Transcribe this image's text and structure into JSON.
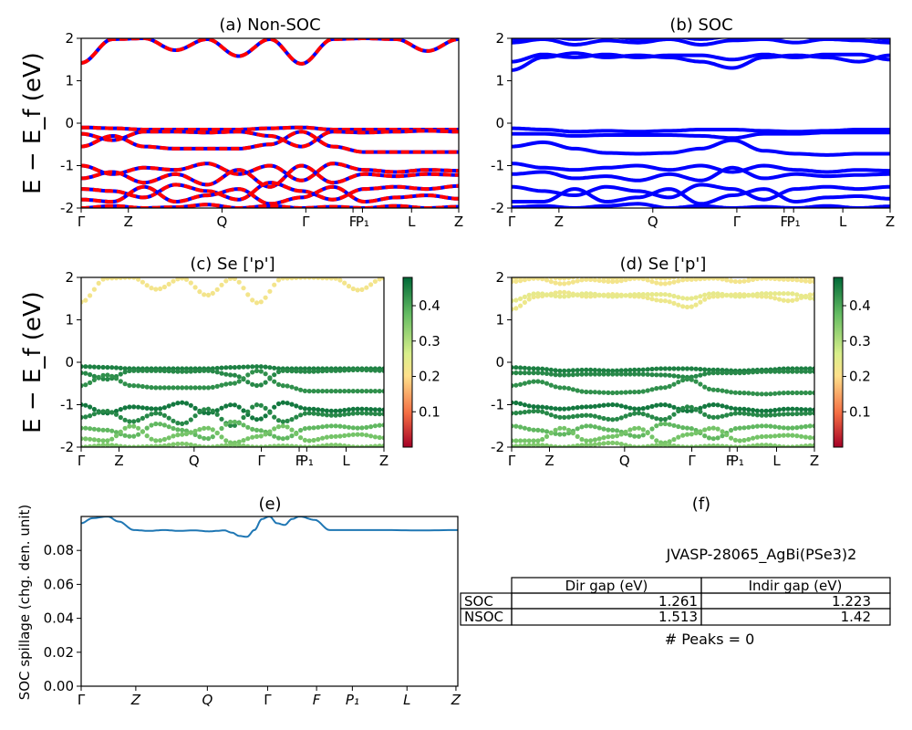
{
  "figure": {
    "ylabel_band": "E − E_f (eV)",
    "ylabel_spillage": "SOC spillage (chg. den. unit)"
  },
  "panels": {
    "a": {
      "title": "(a) Non-SOC"
    },
    "b": {
      "title": "(b) SOC"
    },
    "c": {
      "title": "(c)  Se ['p']"
    },
    "d": {
      "title": "(d) Se ['p']"
    },
    "e": {
      "title": "(e)"
    },
    "f": {
      "title": "(f)"
    }
  },
  "kpath_band_ticks": [
    "Γ",
    "Z",
    "Q",
    "Γ",
    "F",
    "P₁",
    "L",
    "Z"
  ],
  "kpath_spill_ticks": [
    "Γ",
    "Z",
    "Q",
    "Γ",
    "F",
    "P₁",
    "L",
    "Z"
  ],
  "colors": {
    "nonsoc_up": "#0000ff",
    "nonsoc_dn": "#ff0000",
    "soc": "#0000ff",
    "spillage": "#1f77b4",
    "colormap": [
      "#a50026",
      "#f46d43",
      "#fee08b",
      "#d9ef8b",
      "#66bd63",
      "#006837"
    ]
  },
  "chart_data": [
    {
      "panel": "a",
      "type": "line",
      "title": "(a) Non-SOC",
      "ylabel": "E − E_f (eV)",
      "ylim": [
        -2,
        2
      ],
      "yticks": [
        -2,
        -1,
        0,
        1,
        2
      ],
      "xticklabels": [
        "Γ",
        "Z",
        "Q",
        "Γ",
        "F",
        "P₁",
        "L",
        "Z"
      ],
      "bands": [
        {
          "name": "cb1",
          "anchors": [
            1.42,
            1.98,
            2.0,
            1.72,
            1.98,
            1.58,
            1.98,
            1.4,
            1.98,
            2.0,
            1.98,
            1.7,
            1.98
          ]
        },
        {
          "name": "vb1",
          "anchors": [
            -0.1,
            -0.12,
            -0.15,
            -0.15,
            -0.15,
            -0.15,
            -0.12,
            -0.1,
            -0.15,
            -0.15,
            -0.15,
            -0.15,
            -0.15
          ]
        },
        {
          "name": "vb2",
          "anchors": [
            -0.25,
            -0.4,
            -0.2,
            -0.2,
            -0.22,
            -0.2,
            -0.3,
            -0.55,
            -0.2,
            -0.22,
            -0.2,
            -0.18,
            -0.2
          ]
        },
        {
          "name": "vb3",
          "anchors": [
            -0.55,
            -0.3,
            -0.55,
            -0.6,
            -0.6,
            -0.6,
            -0.5,
            -0.2,
            -0.55,
            -0.68,
            -0.68,
            -0.68,
            -0.68
          ]
        },
        {
          "name": "vb4",
          "anchors": [
            -1.0,
            -1.2,
            -1.05,
            -1.1,
            -0.95,
            -1.2,
            -1.0,
            -1.35,
            -0.95,
            -1.1,
            -1.15,
            -1.1,
            -1.12
          ]
        },
        {
          "name": "vb5",
          "anchors": [
            -1.3,
            -1.15,
            -1.4,
            -1.2,
            -1.45,
            -1.1,
            -1.5,
            -1.0,
            -1.4,
            -1.2,
            -1.25,
            -1.2,
            -1.22
          ]
        },
        {
          "name": "vb6",
          "anchors": [
            -1.55,
            -1.6,
            -1.75,
            -1.45,
            -1.6,
            -1.8,
            -1.4,
            -1.6,
            -1.8,
            -1.55,
            -1.5,
            -1.55,
            -1.48
          ]
        },
        {
          "name": "vb7",
          "anchors": [
            -1.8,
            -1.85,
            -1.5,
            -1.85,
            -1.7,
            -1.55,
            -1.9,
            -1.75,
            -1.5,
            -1.85,
            -1.75,
            -1.7,
            -1.78
          ]
        },
        {
          "name": "vb8",
          "anchors": [
            -2.0,
            -1.95,
            -2.0,
            -1.98,
            -1.92,
            -2.0,
            -1.95,
            -2.0,
            -1.97,
            -2.0,
            -1.95,
            -2.0,
            -1.97
          ]
        }
      ]
    },
    {
      "panel": "b",
      "type": "line",
      "title": "(b) SOC",
      "ylim": [
        -2,
        2
      ],
      "yticks": [
        -2,
        -1,
        0,
        1,
        2
      ],
      "xticklabels": [
        "Γ",
        "Z",
        "Q",
        "Γ",
        "F",
        "P₁",
        "L",
        "Z"
      ],
      "bands": [
        {
          "name": "cb1",
          "anchors": [
            1.25,
            1.55,
            1.65,
            1.55,
            1.6,
            1.55,
            1.45,
            1.3,
            1.55,
            1.6,
            1.55,
            1.45,
            1.6
          ]
        },
        {
          "name": "cb2",
          "anchors": [
            1.45,
            1.62,
            1.55,
            1.62,
            1.55,
            1.6,
            1.6,
            1.5,
            1.62,
            1.55,
            1.62,
            1.62,
            1.5
          ]
        },
        {
          "name": "cb3",
          "anchors": [
            1.9,
            1.98,
            1.85,
            1.95,
            1.9,
            1.98,
            1.85,
            1.95,
            1.98,
            1.9,
            1.98,
            1.95,
            1.9
          ]
        },
        {
          "name": "cb4",
          "anchors": [
            1.98,
            2.05,
            1.98,
            2.05,
            1.98,
            2.05,
            1.98,
            2.05,
            1.98,
            2.05,
            1.98,
            2.05,
            1.98
          ]
        },
        {
          "name": "vb1",
          "anchors": [
            -0.12,
            -0.15,
            -0.2,
            -0.18,
            -0.2,
            -0.18,
            -0.15,
            -0.15,
            -0.18,
            -0.2,
            -0.18,
            -0.15,
            -0.15
          ]
        },
        {
          "name": "vb2",
          "anchors": [
            -0.25,
            -0.25,
            -0.3,
            -0.28,
            -0.28,
            -0.28,
            -0.3,
            -0.35,
            -0.25,
            -0.25,
            -0.22,
            -0.22,
            -0.22
          ]
        },
        {
          "name": "vb3",
          "anchors": [
            -0.55,
            -0.45,
            -0.6,
            -0.7,
            -0.72,
            -0.7,
            -0.6,
            -0.4,
            -0.65,
            -0.72,
            -0.75,
            -0.72,
            -0.72
          ]
        },
        {
          "name": "vb4",
          "anchors": [
            -0.95,
            -1.05,
            -1.1,
            -1.05,
            -1.0,
            -1.1,
            -1.0,
            -1.15,
            -1.0,
            -1.1,
            -1.15,
            -1.1,
            -1.12
          ]
        },
        {
          "name": "vb5",
          "anchors": [
            -1.2,
            -1.15,
            -1.3,
            -1.25,
            -1.35,
            -1.2,
            -1.35,
            -1.05,
            -1.3,
            -1.2,
            -1.25,
            -1.22,
            -1.2
          ]
        },
        {
          "name": "vb6",
          "anchors": [
            -1.5,
            -1.6,
            -1.7,
            -1.5,
            -1.6,
            -1.75,
            -1.45,
            -1.55,
            -1.8,
            -1.55,
            -1.5,
            -1.55,
            -1.5
          ]
        },
        {
          "name": "vb7",
          "anchors": [
            -1.85,
            -1.85,
            -1.55,
            -1.85,
            -1.75,
            -1.55,
            -1.9,
            -1.7,
            -1.55,
            -1.85,
            -1.75,
            -1.72,
            -1.78
          ]
        },
        {
          "name": "vb8",
          "anchors": [
            -1.98,
            -1.95,
            -2.0,
            -1.95,
            -1.9,
            -2.0,
            -1.95,
            -2.0,
            -1.97,
            -2.0,
            -1.95,
            -2.0,
            -1.96
          ]
        }
      ]
    },
    {
      "panel": "c",
      "type": "scatter",
      "title": "(c)  Se ['p']",
      "ylabel": "E − E_f (eV)",
      "ylim": [
        -2,
        2
      ],
      "yticks": [
        -2,
        -1,
        0,
        1,
        2
      ],
      "xticklabels": [
        "Γ",
        "Z",
        "Q",
        "Γ",
        "F",
        "P₁",
        "L",
        "Z"
      ],
      "colorbar": {
        "range": [
          0.0,
          0.48
        ],
        "ticks": [
          0.1,
          0.2,
          0.3,
          0.4
        ]
      },
      "band_weights": {
        "cb1": 0.22,
        "vb1": 0.45,
        "vb2": 0.44,
        "vb3": 0.43,
        "vb4": 0.46,
        "vb5": 0.44,
        "vb6": 0.38,
        "vb7": 0.36,
        "vb8": 0.35
      }
    },
    {
      "panel": "d",
      "type": "scatter",
      "title": "(d) Se ['p']",
      "ylim": [
        -2,
        2
      ],
      "yticks": [
        -2,
        -1,
        0,
        1,
        2
      ],
      "xticklabels": [
        "Γ",
        "Z",
        "Q",
        "Γ",
        "F",
        "P₁",
        "L",
        "Z"
      ],
      "colorbar": {
        "range": [
          0.0,
          0.48
        ],
        "ticks": [
          0.1,
          0.2,
          0.3,
          0.4
        ]
      },
      "band_weights": {
        "cb1": 0.23,
        "cb2": 0.24,
        "cb3": 0.22,
        "cb4": 0.22,
        "vb1": 0.45,
        "vb2": 0.44,
        "vb3": 0.43,
        "vb4": 0.46,
        "vb5": 0.44,
        "vb6": 0.38,
        "vb7": 0.36,
        "vb8": 0.35
      }
    },
    {
      "panel": "e",
      "type": "line",
      "title": "(e)",
      "ylabel": "SOC spillage (chg. den. unit)",
      "ylim": [
        0.0,
        0.1
      ],
      "yticks": [
        0.0,
        0.02,
        0.04,
        0.06,
        0.08
      ],
      "xticklabels": [
        "Γ",
        "Z",
        "Q",
        "Γ",
        "F",
        "P₁",
        "L",
        "Z"
      ],
      "x": [
        0.0,
        0.03,
        0.07,
        0.1,
        0.14,
        0.18,
        0.22,
        0.26,
        0.3,
        0.34,
        0.36,
        0.38,
        0.4,
        0.42,
        0.44,
        0.46,
        0.48,
        0.5,
        0.52,
        0.54,
        0.56,
        0.58,
        0.62,
        0.66,
        0.7,
        0.8,
        0.9,
        1.0
      ],
      "values": [
        0.096,
        0.099,
        0.1,
        0.097,
        0.092,
        0.0915,
        0.092,
        0.0915,
        0.0918,
        0.0912,
        0.0915,
        0.0918,
        0.0905,
        0.0885,
        0.088,
        0.092,
        0.0985,
        0.1,
        0.096,
        0.095,
        0.0985,
        0.1,
        0.098,
        0.092,
        0.092,
        0.092,
        0.0918,
        0.092
      ]
    }
  ],
  "table_panel": {
    "material": "JVASP-28065_AgBi(PSe3)2",
    "columns": [
      "Dir gap (eV)",
      "Indir gap (eV)"
    ],
    "rows": [
      {
        "label": "SOC",
        "dir": "1.261",
        "indir": "1.223"
      },
      {
        "label": "NSOC",
        "dir": "1.513",
        "indir": "1.42"
      }
    ],
    "peaks": "# Peaks = 0"
  }
}
